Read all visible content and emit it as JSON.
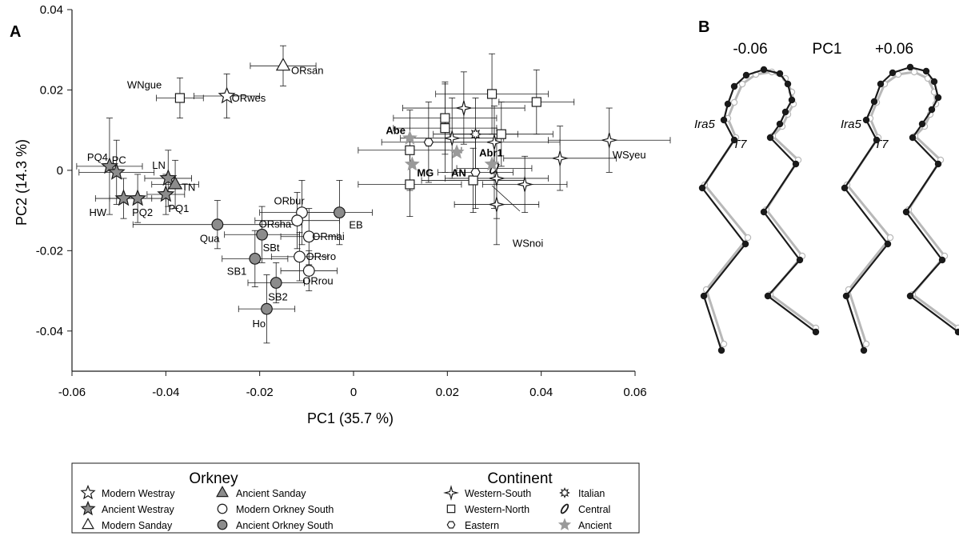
{
  "figure": {
    "panel_a_label": "A",
    "panel_b_label": "B"
  },
  "chart_data": {
    "type": "scatter",
    "xlabel": "PC1 (35.7 %)",
    "ylabel": "PC2 (14.3 %)",
    "xlim": [
      -0.06,
      0.06
    ],
    "ylim": [
      -0.05,
      0.04
    ],
    "x_ticks": [
      "-0.06",
      "-0.04",
      "-0.02",
      "0",
      "0.02",
      "0.04",
      "0.06"
    ],
    "y_ticks": [
      "-0.04",
      "-0.02",
      "0",
      "0.02",
      "0.04"
    ],
    "grid": false,
    "colors": {
      "ancient_fill": "#8c8c8c",
      "gray_star": "#9a9a9a",
      "open_fill": "#ffffff",
      "stroke": "#1a1a1a"
    },
    "series": [
      {
        "name": "Modern Westray",
        "symbol": "star-open",
        "points": [
          {
            "label": "ORwes",
            "x": -0.027,
            "y": 0.0185,
            "ex": 0.007,
            "ey": 0.0055
          }
        ]
      },
      {
        "name": "Ancient Westray",
        "symbol": "star-filled",
        "points": [
          {
            "label": "PQ4",
            "x": -0.052,
            "y": 0.001,
            "ex": 0.007,
            "ey": 0.012
          },
          {
            "label": "PC",
            "x": -0.0505,
            "y": -0.0005,
            "ex": 0.008,
            "ey": 0.008
          },
          {
            "label": "HW",
            "x": -0.049,
            "y": -0.007,
            "ex": 0.006,
            "ey": 0.005
          },
          {
            "label": "PQ2",
            "x": -0.046,
            "y": -0.007,
            "ex": 0.006,
            "ey": 0.006
          },
          {
            "label": "PQ1",
            "x": -0.04,
            "y": -0.006,
            "ex": 0.004,
            "ey": 0.005
          },
          {
            "label": "LN",
            "x": -0.0395,
            "y": -0.002,
            "ex": 0.005,
            "ey": 0.007
          }
        ]
      },
      {
        "name": "Modern Sanday",
        "symbol": "triangle-open",
        "points": [
          {
            "label": "ORsan",
            "x": -0.015,
            "y": 0.026,
            "ex": 0.007,
            "ey": 0.005
          }
        ]
      },
      {
        "name": "Ancient Sanday",
        "symbol": "triangle-filled",
        "points": [
          {
            "label": "TN",
            "x": -0.038,
            "y": -0.0035,
            "ex": 0.005,
            "ey": 0.006
          }
        ]
      },
      {
        "name": "Modern Orkney South",
        "symbol": "circle-open",
        "points": [
          {
            "label": "ORbur",
            "x": -0.011,
            "y": -0.0105,
            "ex": 0.009,
            "ey": 0.008
          },
          {
            "label": "ORsha",
            "x": -0.012,
            "y": -0.0125,
            "ex": 0.009,
            "ey": 0.007
          },
          {
            "label": "ORmai",
            "x": -0.0095,
            "y": -0.0165,
            "ex": 0.006,
            "ey": 0.007
          },
          {
            "label": "ORsro",
            "x": -0.0115,
            "y": -0.0215,
            "ex": 0.006,
            "ey": 0.006
          },
          {
            "label": "ORrou",
            "x": -0.0095,
            "y": -0.025,
            "ex": 0.006,
            "ey": 0.005
          }
        ]
      },
      {
        "name": "Ancient Orkney South",
        "symbol": "circle-filled",
        "points": [
          {
            "label": "Qua",
            "x": -0.029,
            "y": -0.0135,
            "ex": 0.018,
            "ey": 0.006
          },
          {
            "label": "EB",
            "x": -0.003,
            "y": -0.0105,
            "ex": 0.007,
            "ey": 0.008
          },
          {
            "label": "SBt",
            "x": -0.0195,
            "y": -0.016,
            "ex": 0.008,
            "ey": 0.007
          },
          {
            "label": "SB1",
            "x": -0.021,
            "y": -0.022,
            "ex": 0.007,
            "ey": 0.007
          },
          {
            "label": "SB2",
            "x": -0.0165,
            "y": -0.028,
            "ex": 0.006,
            "ey": 0.005
          },
          {
            "label": "Ho",
            "x": -0.0185,
            "y": -0.0345,
            "ex": 0.006,
            "ey": 0.0085
          }
        ]
      },
      {
        "name": "Western-South",
        "symbol": "diamond-star",
        "points": [
          {
            "label": "",
            "x": 0.0235,
            "y": 0.0155,
            "ex": 0.013,
            "ey": 0.009
          },
          {
            "label": "",
            "x": 0.021,
            "y": 0.008,
            "ex": 0.011,
            "ey": 0.01
          },
          {
            "label": "",
            "x": 0.03,
            "y": 0.007,
            "ex": 0.014,
            "ey": 0.009
          },
          {
            "label": "WSyeu",
            "x": 0.0545,
            "y": 0.0075,
            "ex": 0.013,
            "ey": 0.008
          },
          {
            "label": "",
            "x": 0.044,
            "y": 0.003,
            "ex": 0.012,
            "ey": 0.008
          },
          {
            "label": "",
            "x": 0.0305,
            "y": -0.002,
            "ex": 0.011,
            "ey": 0.01
          },
          {
            "label": "",
            "x": 0.0365,
            "y": -0.0035,
            "ex": 0.009,
            "ey": 0.007
          },
          {
            "label": "WSnoi",
            "x": 0.0305,
            "y": -0.0085,
            "ex": 0.009,
            "ey": 0.01
          }
        ]
      },
      {
        "name": "Western-North",
        "symbol": "square-open",
        "points": [
          {
            "label": "WNgue",
            "x": -0.037,
            "y": 0.018,
            "ex": 0.005,
            "ey": 0.005
          },
          {
            "label": "",
            "x": 0.0295,
            "y": 0.019,
            "ex": 0.012,
            "ey": 0.01
          },
          {
            "label": "",
            "x": 0.039,
            "y": 0.017,
            "ex": 0.008,
            "ey": 0.008
          },
          {
            "label": "",
            "x": 0.0195,
            "y": 0.013,
            "ex": 0.011,
            "ey": 0.009
          },
          {
            "label": "",
            "x": 0.0195,
            "y": 0.0105,
            "ex": 0.011,
            "ey": 0.011
          },
          {
            "label": "",
            "x": 0.0315,
            "y": 0.009,
            "ex": 0.011,
            "ey": 0.008
          },
          {
            "label": "",
            "x": 0.012,
            "y": 0.005,
            "ex": 0.011,
            "ey": 0.01
          },
          {
            "label": "",
            "x": 0.0255,
            "y": -0.0025,
            "ex": 0.011,
            "ey": 0.008
          },
          {
            "label": "",
            "x": 0.012,
            "y": -0.0035,
            "ex": 0.011,
            "ey": 0.008
          }
        ]
      },
      {
        "name": "Eastern",
        "symbol": "hexagon-open",
        "points": [
          {
            "label": "",
            "x": 0.016,
            "y": 0.007,
            "ex": 0.01,
            "ey": 0.01
          },
          {
            "label": "",
            "x": 0.026,
            "y": -0.0005,
            "ex": 0.008,
            "ey": 0.009
          }
        ]
      },
      {
        "name": "Italian",
        "symbol": "sun",
        "points": [
          {
            "label": "",
            "x": 0.026,
            "y": 0.009,
            "ex": 0.009,
            "ey": 0.009
          }
        ]
      },
      {
        "name": "Central",
        "symbol": "ellipse",
        "points": [
          {
            "label": "",
            "x": 0.03,
            "y": 0.0005,
            "ex": 0.008,
            "ey": 0.01
          }
        ]
      },
      {
        "name": "Ancient",
        "symbol": "star-gray",
        "points": [
          {
            "label": "Abe",
            "x": 0.012,
            "y": 0.008,
            "ex": 0,
            "ey": 0
          },
          {
            "label": "MG",
            "x": 0.0125,
            "y": 0.0015,
            "ex": 0,
            "ey": 0
          },
          {
            "label": "AN",
            "x": 0.022,
            "y": 0.0045,
            "ex": 0,
            "ey": 0
          },
          {
            "label": "Abr1",
            "x": 0.0295,
            "y": 0.0015,
            "ex": 0,
            "ey": 0
          }
        ]
      }
    ]
  },
  "legend": {
    "orkney_title": "Orkney",
    "continent_title": "Continent",
    "orkney_col1": [
      "Modern Westray",
      "Ancient Westray",
      "Modern Sanday"
    ],
    "orkney_col2": [
      "Ancient Sanday",
      "Modern Orkney South",
      "Ancient Orkney South"
    ],
    "continent_col1": [
      "Western-South",
      "Western-North",
      "Eastern"
    ],
    "continent_col2": [
      "Italian",
      "Central",
      "Ancient"
    ]
  },
  "panel_b": {
    "pc_label": "PC1",
    "neg_label": "-0.06",
    "pos_label": "+0.06",
    "label_ira5": "Ira5",
    "label_t7": "T7"
  }
}
